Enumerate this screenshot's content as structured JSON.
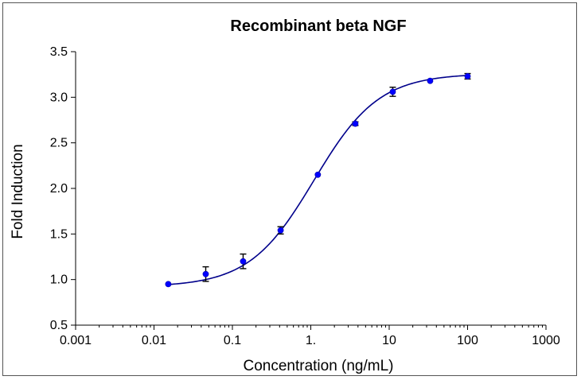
{
  "chart_data": {
    "type": "scatter",
    "title": "Recombinant beta NGF",
    "xlabel": "Concentration (ng/mL)",
    "ylabel": "Fold Induction",
    "xscale": "log",
    "xlim": [
      0.001,
      1000
    ],
    "ylim": [
      0.5,
      3.5
    ],
    "x_ticks": [
      0.001,
      0.01,
      0.1,
      1,
      10,
      100,
      1000
    ],
    "x_tick_labels": [
      "0.001",
      "0.01",
      "0.1",
      "1.",
      "10",
      "100",
      "1000"
    ],
    "y_ticks": [
      0.5,
      1.0,
      1.5,
      2.0,
      2.5,
      3.0,
      3.5
    ],
    "y_tick_labels": [
      "0.5",
      "1.0",
      "1.5",
      "2.0",
      "2.5",
      "3.0",
      "3.5"
    ],
    "marker_color": "#0000ff",
    "fit_color": "#00008b",
    "errorbar_color": "#000000",
    "series": [
      {
        "name": "Recombinant beta NGF",
        "x": [
          0.0152,
          0.0457,
          0.137,
          0.412,
          1.23,
          3.7,
          11.1,
          33.3,
          100
        ],
        "y": [
          0.95,
          1.06,
          1.2,
          1.54,
          2.15,
          2.71,
          3.06,
          3.18,
          3.23
        ],
        "error": [
          0.0,
          0.08,
          0.08,
          0.04,
          0.0,
          0.02,
          0.05,
          0.0,
          0.03
        ]
      }
    ],
    "fit": {
      "model": "4PL",
      "bottom": 0.92,
      "top": 3.26,
      "ec50": 1.1,
      "hill": 1.05
    }
  }
}
